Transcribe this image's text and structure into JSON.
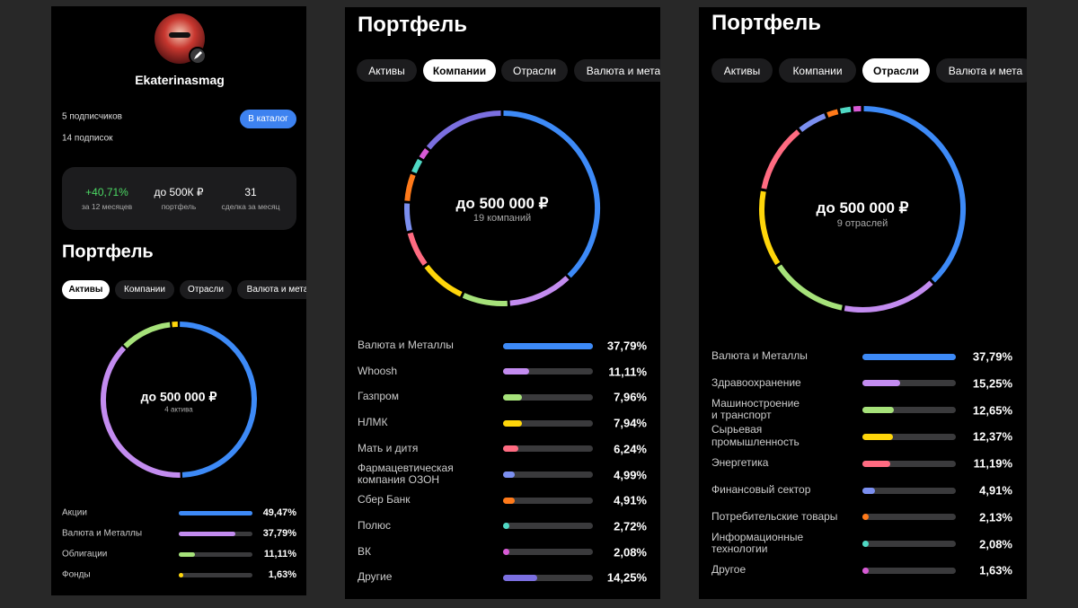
{
  "profile": {
    "name": "Ekaterinasmag",
    "followers": "5 подписчиков",
    "following": "14 подписок",
    "button": "В каталог",
    "stats": [
      {
        "value": "+40,71%",
        "label": "за 12 месяцев"
      },
      {
        "value": "до 500К ₽",
        "label": "портфель"
      },
      {
        "value": "31",
        "label": "сделка за месяц"
      }
    ]
  },
  "panels": [
    {
      "title": "Портфель",
      "tabs": [
        "Активы",
        "Компании",
        "Отрасли",
        "Валюта и мета"
      ],
      "active_tab": 0,
      "total": "до 500 000 ₽",
      "count": "4 актива",
      "items": [
        {
          "name": "Акции",
          "value": 49.47,
          "value_label": "49,47%",
          "color": "#3d8af7"
        },
        {
          "name": "Валюта и Металлы",
          "value": 37.79,
          "value_label": "37,79%",
          "color": "#c38cf0"
        },
        {
          "name": "Облигации",
          "value": 11.11,
          "value_label": "11,11%",
          "color": "#a6e27a"
        },
        {
          "name": "Фонды",
          "value": 1.63,
          "value_label": "1,63%",
          "color": "#ffd60a"
        }
      ]
    },
    {
      "title": "Портфель",
      "tabs": [
        "Активы",
        "Компании",
        "Отрасли",
        "Валюта и мета"
      ],
      "active_tab": 1,
      "total": "до 500 000 ₽",
      "count": "19 компаний",
      "items": [
        {
          "name": "Валюта и Металлы",
          "value": 37.79,
          "value_label": "37,79%",
          "color": "#3d8af7"
        },
        {
          "name": "Whoosh",
          "value": 11.11,
          "value_label": "11,11%",
          "color": "#c38cf0"
        },
        {
          "name": "Газпром",
          "value": 7.96,
          "value_label": "7,96%",
          "color": "#a6e27a"
        },
        {
          "name": "НЛМК",
          "value": 7.94,
          "value_label": "7,94%",
          "color": "#ffd60a"
        },
        {
          "name": "Мать и дитя",
          "value": 6.24,
          "value_label": "6,24%",
          "color": "#ff6b81"
        },
        {
          "name": "Фармацевтическая\nкомпания ОЗОН",
          "value": 4.99,
          "value_label": "4,99%",
          "color": "#7b8ff0"
        },
        {
          "name": "Сбер Банк",
          "value": 4.91,
          "value_label": "4,91%",
          "color": "#ff7a1a"
        },
        {
          "name": "Полюс",
          "value": 2.72,
          "value_label": "2,72%",
          "color": "#4fd8c4"
        },
        {
          "name": "ВК",
          "value": 2.08,
          "value_label": "2,08%",
          "color": "#d85ad6"
        },
        {
          "name": "Другие",
          "value": 14.25,
          "value_label": "14,25%",
          "color": "#7b6fe0"
        }
      ]
    },
    {
      "title": "Портфель",
      "tabs": [
        "Активы",
        "Компании",
        "Отрасли",
        "Валюта и мета"
      ],
      "active_tab": 2,
      "total": "до 500 000 ₽",
      "count": "9 отраслей",
      "items": [
        {
          "name": "Валюта и Металлы",
          "value": 37.79,
          "value_label": "37,79%",
          "color": "#3d8af7"
        },
        {
          "name": "Здравоохранение",
          "value": 15.25,
          "value_label": "15,25%",
          "color": "#c38cf0"
        },
        {
          "name": "Машиностроение\nи транспорт",
          "value": 12.65,
          "value_label": "12,65%",
          "color": "#a6e27a"
        },
        {
          "name": "Сырьевая\nпромышленность",
          "value": 12.37,
          "value_label": "12,37%",
          "color": "#ffd60a"
        },
        {
          "name": "Энергетика",
          "value": 11.19,
          "value_label": "11,19%",
          "color": "#ff6b81"
        },
        {
          "name": "Финансовый сектор",
          "value": 4.91,
          "value_label": "4,91%",
          "color": "#7b8ff0"
        },
        {
          "name": "Потребительские товары",
          "value": 2.13,
          "value_label": "2,13%",
          "color": "#ff7a1a"
        },
        {
          "name": "Информационные\nтехнологии",
          "value": 2.08,
          "value_label": "2,08%",
          "color": "#4fd8c4"
        },
        {
          "name": "Другое",
          "value": 1.63,
          "value_label": "1,63%",
          "color": "#d85ad6"
        }
      ]
    }
  ]
}
